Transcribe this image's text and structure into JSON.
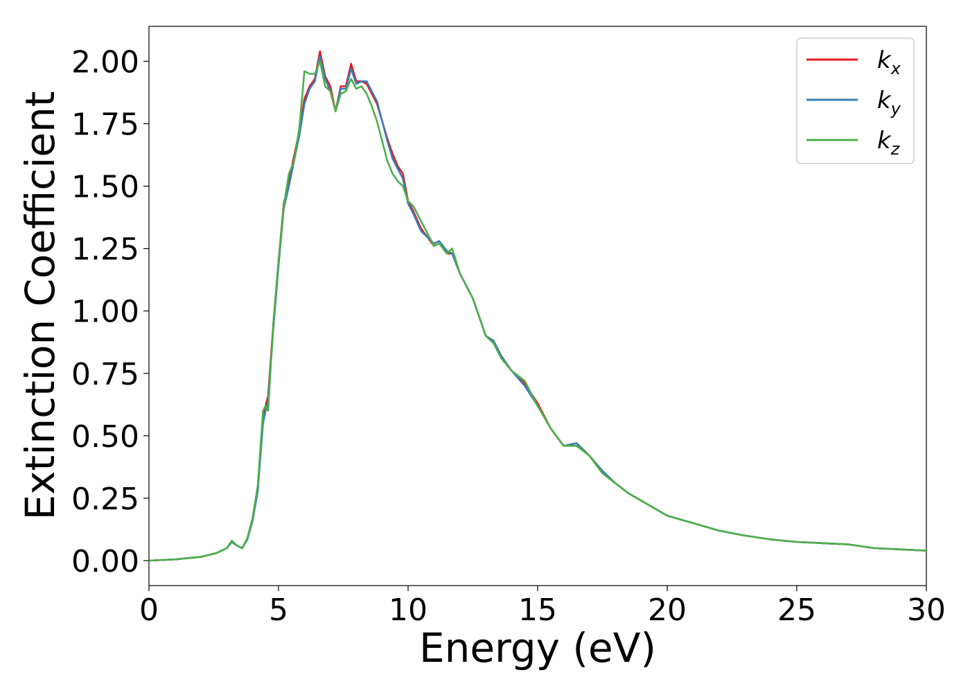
{
  "chart_data": {
    "type": "line",
    "title": "",
    "xlabel": "Energy (eV)",
    "ylabel": "Extinction Coefficient",
    "xlim": [
      0,
      30
    ],
    "ylim": [
      -0.1,
      2.14
    ],
    "xticks": [
      0,
      5,
      10,
      15,
      20,
      25,
      30
    ],
    "xtick_labels": [
      "0",
      "5",
      "10",
      "15",
      "20",
      "25",
      "30"
    ],
    "yticks": [
      0.0,
      0.25,
      0.5,
      0.75,
      1.0,
      1.25,
      1.5,
      1.75,
      2.0
    ],
    "ytick_labels": [
      "0.00",
      "0.25",
      "0.50",
      "0.75",
      "1.00",
      "1.25",
      "1.50",
      "1.75",
      "2.00"
    ],
    "grid": false,
    "legend_position": "top-right",
    "series": [
      {
        "name": "k_x",
        "legend_main": "k",
        "legend_sub": "x",
        "color": "#e41a1c",
        "x": [
          0,
          1,
          2,
          2.6,
          3.0,
          3.2,
          3.4,
          3.6,
          3.8,
          4.0,
          4.2,
          4.4,
          4.5,
          4.6,
          4.8,
          5.0,
          5.2,
          5.4,
          5.6,
          5.8,
          6.0,
          6.2,
          6.4,
          6.6,
          6.8,
          7.0,
          7.2,
          7.4,
          7.6,
          7.8,
          8.0,
          8.2,
          8.4,
          8.6,
          8.8,
          9.0,
          9.2,
          9.4,
          9.6,
          9.8,
          10.0,
          10.2,
          10.5,
          11.0,
          11.2,
          11.5,
          11.7,
          12.0,
          12.5,
          13.0,
          13.3,
          13.6,
          14.0,
          14.5,
          15.0,
          15.5,
          16.0,
          16.5,
          17.0,
          17.5,
          18.0,
          18.5,
          19.0,
          20.0,
          21.0,
          22.0,
          23.0,
          24.0,
          25.0,
          26.0,
          27.0,
          28.0,
          29.0,
          30.0
        ],
        "y": [
          0.0,
          0.005,
          0.015,
          0.03,
          0.05,
          0.075,
          0.06,
          0.05,
          0.09,
          0.17,
          0.3,
          0.58,
          0.62,
          0.66,
          0.95,
          1.2,
          1.43,
          1.52,
          1.62,
          1.72,
          1.85,
          1.9,
          1.93,
          2.04,
          1.94,
          1.9,
          1.8,
          1.9,
          1.9,
          1.99,
          1.92,
          1.92,
          1.91,
          1.87,
          1.83,
          1.76,
          1.69,
          1.63,
          1.58,
          1.55,
          1.44,
          1.4,
          1.33,
          1.26,
          1.27,
          1.23,
          1.23,
          1.15,
          1.05,
          0.9,
          0.88,
          0.81,
          0.76,
          0.71,
          0.63,
          0.53,
          0.46,
          0.47,
          0.42,
          0.35,
          0.31,
          0.27,
          0.24,
          0.18,
          0.15,
          0.12,
          0.1,
          0.085,
          0.075,
          0.07,
          0.065,
          0.05,
          0.045,
          0.04
        ]
      },
      {
        "name": "k_y",
        "legend_main": "k",
        "legend_sub": "y",
        "color": "#377eb8",
        "x": [
          0,
          1,
          2,
          2.6,
          3.0,
          3.2,
          3.4,
          3.6,
          3.8,
          4.0,
          4.2,
          4.4,
          4.5,
          4.6,
          4.8,
          5.0,
          5.2,
          5.4,
          5.6,
          5.8,
          6.0,
          6.2,
          6.4,
          6.6,
          6.8,
          7.0,
          7.2,
          7.4,
          7.6,
          7.8,
          8.0,
          8.2,
          8.4,
          8.6,
          8.8,
          9.0,
          9.2,
          9.4,
          9.6,
          9.8,
          10.0,
          10.2,
          10.5,
          11.0,
          11.2,
          11.5,
          11.7,
          12.0,
          12.5,
          13.0,
          13.3,
          13.6,
          14.0,
          14.5,
          15.0,
          15.5,
          16.0,
          16.5,
          17.0,
          17.5,
          18.0,
          18.5,
          19.0,
          20.0,
          21.0,
          22.0,
          23.0,
          24.0,
          25.0,
          26.0,
          27.0,
          28.0,
          29.0,
          30.0
        ],
        "y": [
          0.0,
          0.005,
          0.015,
          0.03,
          0.05,
          0.075,
          0.06,
          0.05,
          0.085,
          0.16,
          0.28,
          0.55,
          0.6,
          0.64,
          0.93,
          1.18,
          1.41,
          1.5,
          1.6,
          1.7,
          1.83,
          1.89,
          1.92,
          2.02,
          1.93,
          1.88,
          1.8,
          1.89,
          1.89,
          1.97,
          1.91,
          1.92,
          1.92,
          1.88,
          1.84,
          1.76,
          1.68,
          1.61,
          1.57,
          1.53,
          1.43,
          1.39,
          1.32,
          1.27,
          1.28,
          1.24,
          1.23,
          1.15,
          1.05,
          0.9,
          0.88,
          0.82,
          0.76,
          0.7,
          0.62,
          0.53,
          0.46,
          0.47,
          0.42,
          0.36,
          0.31,
          0.27,
          0.24,
          0.18,
          0.15,
          0.12,
          0.1,
          0.085,
          0.075,
          0.07,
          0.065,
          0.05,
          0.045,
          0.04
        ]
      },
      {
        "name": "k_z",
        "legend_main": "k",
        "legend_sub": "z",
        "color": "#4daf4a",
        "x": [
          0,
          1,
          2,
          2.6,
          3.0,
          3.2,
          3.4,
          3.6,
          3.8,
          4.0,
          4.2,
          4.4,
          4.5,
          4.6,
          4.8,
          5.0,
          5.2,
          5.4,
          5.6,
          5.8,
          6.0,
          6.2,
          6.4,
          6.6,
          6.8,
          7.0,
          7.2,
          7.4,
          7.6,
          7.8,
          8.0,
          8.2,
          8.4,
          8.6,
          8.8,
          9.0,
          9.2,
          9.4,
          9.6,
          9.8,
          10.0,
          10.2,
          10.5,
          11.0,
          11.2,
          11.5,
          11.7,
          12.0,
          12.5,
          13.0,
          13.3,
          13.6,
          14.0,
          14.5,
          15.0,
          15.5,
          16.0,
          16.5,
          17.0,
          17.5,
          18.0,
          18.5,
          19.0,
          20.0,
          21.0,
          22.0,
          23.0,
          24.0,
          25.0,
          26.0,
          27.0,
          28.0,
          29.0,
          30.0
        ],
        "y": [
          0.0,
          0.005,
          0.015,
          0.03,
          0.05,
          0.08,
          0.06,
          0.05,
          0.09,
          0.17,
          0.3,
          0.6,
          0.62,
          0.6,
          0.95,
          1.2,
          1.42,
          1.55,
          1.6,
          1.73,
          1.96,
          1.95,
          1.95,
          2.0,
          1.9,
          1.88,
          1.8,
          1.87,
          1.88,
          1.93,
          1.89,
          1.9,
          1.87,
          1.82,
          1.76,
          1.68,
          1.6,
          1.55,
          1.52,
          1.5,
          1.44,
          1.42,
          1.36,
          1.26,
          1.27,
          1.23,
          1.25,
          1.15,
          1.05,
          0.9,
          0.87,
          0.81,
          0.76,
          0.72,
          0.62,
          0.53,
          0.46,
          0.46,
          0.42,
          0.35,
          0.31,
          0.27,
          0.24,
          0.18,
          0.15,
          0.12,
          0.1,
          0.085,
          0.075,
          0.07,
          0.065,
          0.05,
          0.045,
          0.04
        ]
      }
    ]
  }
}
